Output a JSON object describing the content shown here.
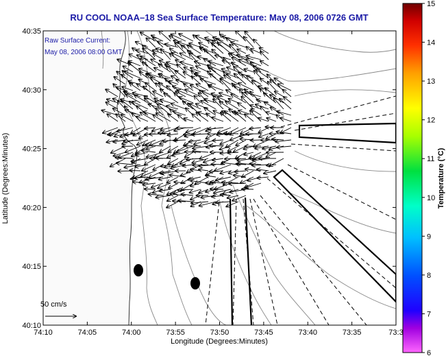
{
  "title": "RU COOL  NOAA–18  Sea Surface Temperature:  May 08, 2006 0726 GMT",
  "annotation": {
    "line1": "Raw Surface Current:",
    "line2": "May 08, 2006 08:00 GMT"
  },
  "scale": {
    "label": "50 cm/s"
  },
  "axes": {
    "xlabel": "Longitude (Degrees:Minutes)",
    "ylabel": "Latitude (Degrees:Minutes)",
    "xticks": [
      "74:10",
      "74:05",
      "74:00",
      "73:55",
      "73:50",
      "73:45",
      "73:40",
      "73:35",
      "73:3"
    ],
    "yticks": [
      "40:35",
      "40:30",
      "40:25",
      "40:20",
      "40:15",
      "40:10"
    ]
  },
  "colorbar": {
    "label": "Temperature (°C)",
    "ticks": [
      "15",
      "14",
      "13",
      "12",
      "11",
      "10",
      "9",
      "8",
      "7",
      "6"
    ],
    "colors": [
      "#ff66ff",
      "#7a00c8",
      "#0000ff",
      "#0066ff",
      "#00c8ff",
      "#00ffb0",
      "#00e000",
      "#b0ff00",
      "#ffff00",
      "#ffb000",
      "#ff6000",
      "#ff0000",
      "#b00000",
      "#6a0000"
    ]
  }
}
